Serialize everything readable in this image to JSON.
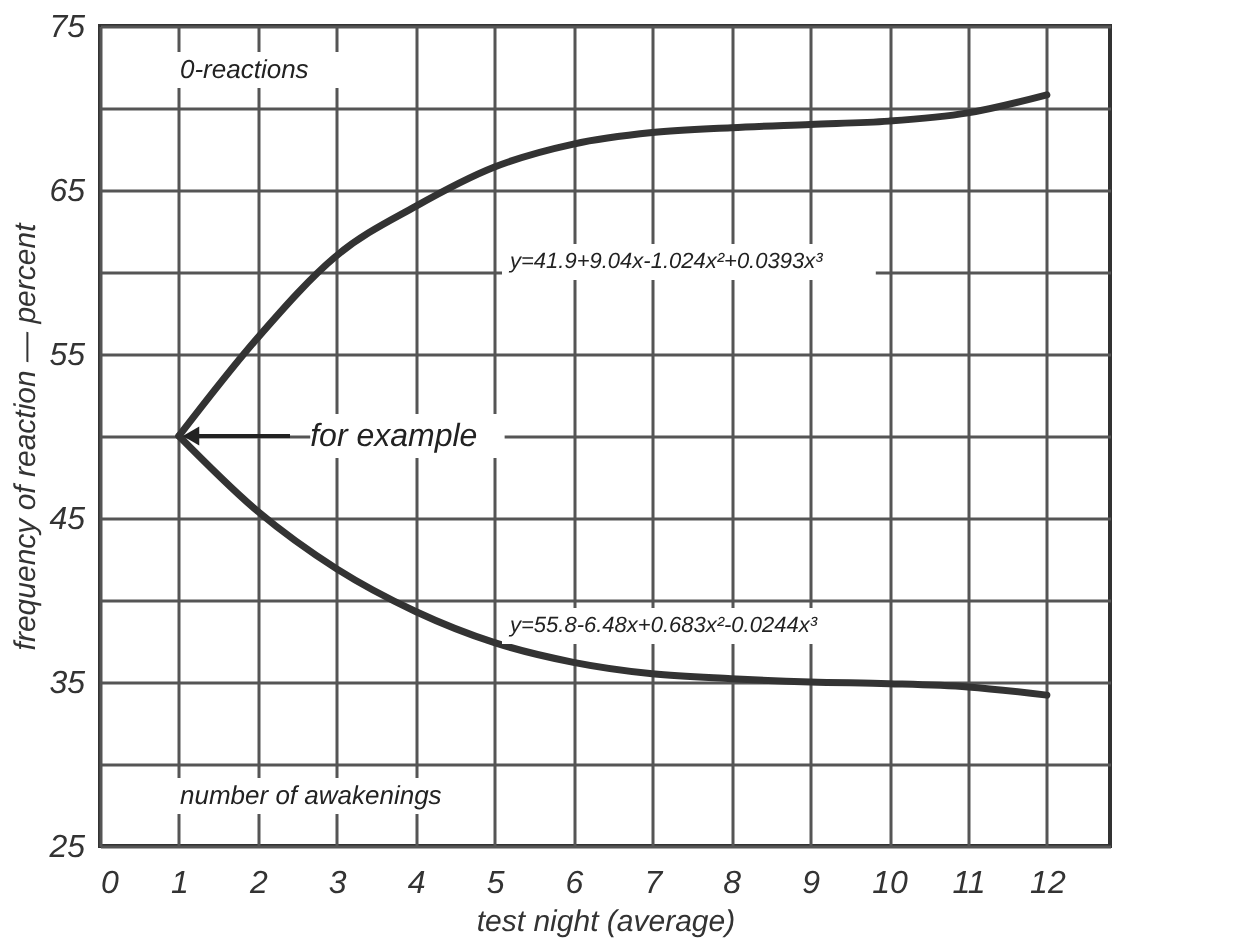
{
  "chart_data": {
    "type": "line",
    "xlabel": "test night (average)",
    "ylabel": "frequency of reaction — percent",
    "x": [
      1,
      2,
      3,
      4,
      5,
      6,
      7,
      8,
      9,
      10,
      11,
      12
    ],
    "series": [
      {
        "color": "#333333",
        "values": [
          50,
          56,
          61,
          64,
          66.4,
          67.8,
          68.5,
          68.8,
          69,
          69.2,
          69.7,
          70.8
        ]
      },
      {
        "color": "#333333",
        "values": [
          50,
          45.4,
          41.9,
          39.3,
          37.4,
          36.2,
          35.5,
          35.2,
          35,
          34.9,
          34.7,
          34.2
        ]
      }
    ],
    "annotations": [
      "0-reactions",
      "y=41.9+9.04x-1.024x²+0.0393x³",
      "y=55.8-6.48x+0.683x²-0.0244x³",
      "number of awakenings",
      {
        "text": "for example",
        "x": 1,
        "y": 50
      }
    ],
    "xlim": [
      0,
      12.8
    ],
    "xticks": [
      0,
      1,
      2,
      3,
      4,
      5,
      6,
      7,
      8,
      9,
      10,
      11,
      12
    ],
    "ylim": [
      25,
      75
    ],
    "yticks": [
      25,
      {
        "value": 30,
        "label": null
      },
      35,
      {
        "value": 40,
        "label": null
      },
      45,
      {
        "value": 50,
        "label": null
      },
      55,
      {
        "value": 60,
        "label": null
      },
      65,
      {
        "value": 70,
        "label": null
      },
      75
    ],
    "grid": true,
    "line_style": "solid"
  }
}
